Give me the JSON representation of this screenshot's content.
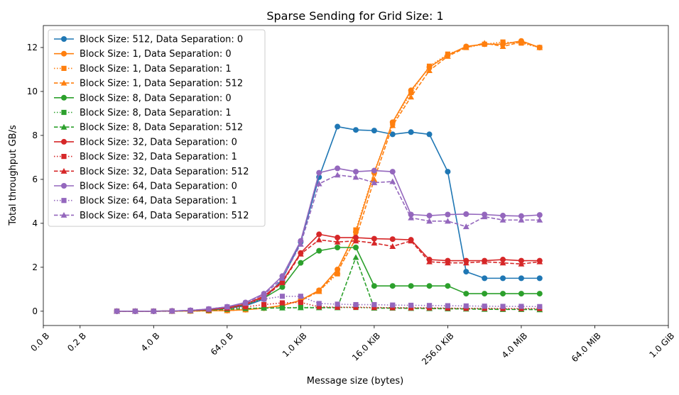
{
  "chart_data": {
    "type": "line",
    "title": "Sparse Sending for Grid Size: 1",
    "xlabel": "Message size (bytes)",
    "ylabel": "Total throughput GB/s",
    "x_scale": "log2",
    "xlim": [
      0.0625,
      1073741824
    ],
    "ylim": [
      -0.65,
      13.0
    ],
    "x_ticks": [
      {
        "value": 0.0625,
        "label": "0.0 B"
      },
      {
        "value": 0.25,
        "label": "0.2 B"
      },
      {
        "value": 4,
        "label": "4.0 B"
      },
      {
        "value": 64,
        "label": "64.0 B"
      },
      {
        "value": 1024,
        "label": "1.0 KiB"
      },
      {
        "value": 16384,
        "label": "16.0 KiB"
      },
      {
        "value": 262144,
        "label": "256.0 KiB"
      },
      {
        "value": 4194304,
        "label": "4.0 MiB"
      },
      {
        "value": 67108864,
        "label": "64.0 MiB"
      },
      {
        "value": 1073741824,
        "label": "1.0 GiB"
      }
    ],
    "y_ticks": [
      0,
      2,
      4,
      6,
      8,
      10,
      12
    ],
    "x": [
      1,
      2,
      4,
      8,
      16,
      32,
      64,
      128,
      256,
      512,
      1024,
      2048,
      4096,
      8192,
      16384,
      32768,
      65536,
      131072,
      262144,
      524288,
      1048576,
      2097152,
      4194304,
      8388608
    ],
    "legend_position": "upper left",
    "series": [
      {
        "name": "Block Size: 512, Data Separation: 0",
        "color": "#1f77b4",
        "linestyle": "solid",
        "marker": "circle",
        "x": [
          1,
          2,
          4,
          8,
          16,
          32,
          64,
          128,
          256,
          512,
          1024,
          2048,
          4096,
          8192,
          16384,
          32768,
          65536,
          131072,
          262144,
          524288,
          1048576,
          2097152,
          4194304,
          8388608
        ],
        "values": [
          0.0,
          0.0,
          0.0,
          0.01,
          0.03,
          0.05,
          0.12,
          0.25,
          0.55,
          1.45,
          3.15,
          6.1,
          8.4,
          8.25,
          8.22,
          8.05,
          8.15,
          8.05,
          6.35,
          1.8,
          1.5,
          1.5,
          1.5,
          1.5
        ]
      },
      {
        "name": "Block Size: 1, Data Separation: 0",
        "color": "#ff7f0e",
        "linestyle": "solid",
        "marker": "circle",
        "x": [
          1,
          2,
          4,
          8,
          16,
          32,
          64,
          128,
          256,
          512,
          1024,
          2048,
          4096,
          8192,
          16384,
          32768,
          65536,
          131072,
          262144,
          524288,
          1048576,
          2097152,
          4194304,
          8388608
        ],
        "values": [
          0.0,
          0.0,
          0.0,
          0.0,
          0.01,
          0.02,
          0.03,
          0.07,
          0.14,
          0.26,
          0.5,
          0.95,
          1.9,
          3.6,
          6.3,
          8.6,
          10.05,
          11.1,
          11.65,
          12.05,
          12.15,
          12.15,
          12.3,
          12.0
        ]
      },
      {
        "name": "Block Size: 1, Data Separation: 1",
        "color": "#ff7f0e",
        "linestyle": "dotted",
        "marker": "square",
        "x": [
          1,
          2,
          4,
          8,
          16,
          32,
          64,
          128,
          256,
          512,
          1024,
          2048,
          4096,
          8192,
          16384,
          32768,
          65536,
          131072,
          262144,
          524288,
          1048576,
          2097152,
          4194304,
          8388608
        ],
        "values": [
          0.0,
          0.0,
          0.0,
          0.0,
          0.01,
          0.02,
          0.03,
          0.07,
          0.14,
          0.26,
          0.48,
          0.92,
          1.7,
          3.7,
          6.35,
          8.55,
          9.95,
          11.15,
          11.7,
          12.0,
          12.15,
          12.25,
          12.2,
          12.0
        ]
      },
      {
        "name": "Block Size: 1, Data Separation: 512",
        "color": "#ff7f0e",
        "linestyle": "dashed",
        "marker": "triangle",
        "x": [
          1,
          2,
          4,
          8,
          16,
          32,
          64,
          128,
          256,
          512,
          1024,
          2048,
          4096,
          8192,
          16384,
          32768,
          65536,
          131072,
          262144,
          524288,
          1048576,
          2097152,
          4194304,
          8388608
        ],
        "values": [
          0.0,
          0.0,
          0.0,
          0.0,
          0.01,
          0.02,
          0.03,
          0.07,
          0.14,
          0.26,
          0.48,
          0.9,
          1.8,
          3.3,
          6.0,
          8.45,
          9.75,
          10.95,
          11.6,
          12.0,
          12.2,
          12.05,
          12.25,
          12.0
        ]
      },
      {
        "name": "Block Size: 8, Data Separation: 0",
        "color": "#2ca02c",
        "linestyle": "solid",
        "marker": "circle",
        "x": [
          1,
          2,
          4,
          8,
          16,
          32,
          64,
          128,
          256,
          512,
          1024,
          2048,
          4096,
          8192,
          16384,
          32768,
          65536,
          131072,
          262144,
          524288,
          1048576,
          2097152,
          4194304,
          8388608
        ],
        "values": [
          0.0,
          0.0,
          0.0,
          0.01,
          0.03,
          0.07,
          0.15,
          0.3,
          0.6,
          1.1,
          2.2,
          2.75,
          2.9,
          2.9,
          1.15,
          1.15,
          1.15,
          1.15,
          1.15,
          0.8,
          0.8,
          0.8,
          0.8,
          0.8
        ]
      },
      {
        "name": "Block Size: 8, Data Separation: 1",
        "color": "#2ca02c",
        "linestyle": "dotted",
        "marker": "square",
        "x": [
          1,
          2,
          4,
          8,
          16,
          32,
          64,
          128,
          256,
          512,
          1024,
          2048,
          4096,
          8192,
          16384,
          32768,
          65536,
          131072,
          262144,
          524288,
          1048576,
          2097152,
          4194304,
          8388608
        ],
        "values": [
          0.0,
          0.0,
          0.0,
          0.01,
          0.02,
          0.05,
          0.09,
          0.13,
          0.15,
          0.16,
          0.17,
          0.17,
          0.17,
          0.17,
          0.15,
          0.15,
          0.15,
          0.14,
          0.13,
          0.12,
          0.12,
          0.1,
          0.1,
          0.1
        ]
      },
      {
        "name": "Block Size: 8, Data Separation: 512",
        "color": "#2ca02c",
        "linestyle": "dashed",
        "marker": "triangle",
        "x": [
          1,
          2,
          4,
          8,
          16,
          32,
          64,
          128,
          256,
          512,
          1024,
          2048,
          4096,
          8192,
          16384,
          32768,
          65536,
          131072,
          262144,
          524288,
          1048576,
          2097152,
          4194304,
          8388608
        ],
        "values": [
          0.0,
          0.0,
          0.0,
          0.0,
          0.02,
          0.05,
          0.09,
          0.12,
          0.14,
          0.15,
          0.16,
          0.16,
          0.16,
          2.45,
          0.14,
          0.14,
          0.13,
          0.12,
          0.11,
          0.1,
          0.09,
          0.08,
          0.08,
          0.07
        ]
      },
      {
        "name": "Block Size: 32, Data Separation: 0",
        "color": "#d62728",
        "linestyle": "solid",
        "marker": "circle",
        "x": [
          1,
          2,
          4,
          8,
          16,
          32,
          64,
          128,
          256,
          512,
          1024,
          2048,
          4096,
          8192,
          16384,
          32768,
          65536,
          131072,
          262144,
          524288,
          1048576,
          2097152,
          4194304,
          8388608
        ],
        "values": [
          0.0,
          0.0,
          0.0,
          0.01,
          0.03,
          0.08,
          0.16,
          0.33,
          0.68,
          1.35,
          2.65,
          3.5,
          3.35,
          3.35,
          3.3,
          3.28,
          3.25,
          2.35,
          2.3,
          2.3,
          2.3,
          2.35,
          2.3,
          2.3
        ]
      },
      {
        "name": "Block Size: 32, Data Separation: 1",
        "color": "#d62728",
        "linestyle": "dotted",
        "marker": "square",
        "x": [
          1,
          2,
          4,
          8,
          16,
          32,
          64,
          128,
          256,
          512,
          1024,
          2048,
          4096,
          8192,
          16384,
          32768,
          65536,
          131072,
          262144,
          524288,
          1048576,
          2097152,
          4194304,
          8388608
        ],
        "values": [
          0.0,
          0.0,
          0.0,
          0.01,
          0.03,
          0.07,
          0.13,
          0.2,
          0.3,
          0.38,
          0.4,
          0.2,
          0.18,
          0.18,
          0.17,
          0.16,
          0.15,
          0.15,
          0.14,
          0.13,
          0.13,
          0.12,
          0.12,
          0.12
        ]
      },
      {
        "name": "Block Size: 32, Data Separation: 512",
        "color": "#d62728",
        "linestyle": "dashed",
        "marker": "triangle",
        "x": [
          1,
          2,
          4,
          8,
          16,
          32,
          64,
          128,
          256,
          512,
          1024,
          2048,
          4096,
          8192,
          16384,
          32768,
          65536,
          131072,
          262144,
          524288,
          1048576,
          2097152,
          4194304,
          8388608
        ],
        "values": [
          0.0,
          0.0,
          0.0,
          0.01,
          0.03,
          0.07,
          0.15,
          0.3,
          0.62,
          1.3,
          2.6,
          3.25,
          3.15,
          3.2,
          3.1,
          2.95,
          3.2,
          2.25,
          2.2,
          2.2,
          2.25,
          2.2,
          2.15,
          2.25
        ]
      },
      {
        "name": "Block Size: 64, Data Separation: 0",
        "color": "#9467bd",
        "linestyle": "solid",
        "marker": "circle",
        "x": [
          1,
          2,
          4,
          8,
          16,
          32,
          64,
          128,
          256,
          512,
          1024,
          2048,
          4096,
          8192,
          16384,
          32768,
          65536,
          131072,
          262144,
          524288,
          1048576,
          2097152,
          4194304,
          8388608
        ],
        "values": [
          0.0,
          0.0,
          0.0,
          0.01,
          0.04,
          0.1,
          0.2,
          0.4,
          0.8,
          1.6,
          3.2,
          6.3,
          6.5,
          6.35,
          6.4,
          6.35,
          4.4,
          4.35,
          4.4,
          4.42,
          4.4,
          4.35,
          4.33,
          4.38
        ]
      },
      {
        "name": "Block Size: 64, Data Separation: 1",
        "color": "#9467bd",
        "linestyle": "dotted",
        "marker": "square",
        "x": [
          1,
          2,
          4,
          8,
          16,
          32,
          64,
          128,
          256,
          512,
          1024,
          2048,
          4096,
          8192,
          16384,
          32768,
          65536,
          131072,
          262144,
          524288,
          1048576,
          2097152,
          4194304,
          8388608
        ],
        "values": [
          0.0,
          0.0,
          0.0,
          0.01,
          0.04,
          0.1,
          0.2,
          0.36,
          0.55,
          0.68,
          0.68,
          0.35,
          0.32,
          0.3,
          0.3,
          0.28,
          0.27,
          0.26,
          0.25,
          0.24,
          0.23,
          0.22,
          0.22,
          0.21
        ]
      },
      {
        "name": "Block Size: 64, Data Separation: 512",
        "color": "#9467bd",
        "linestyle": "dashed",
        "marker": "triangle",
        "x": [
          1,
          2,
          4,
          8,
          16,
          32,
          64,
          128,
          256,
          512,
          1024,
          2048,
          4096,
          8192,
          16384,
          32768,
          65536,
          131072,
          262144,
          524288,
          1048576,
          2097152,
          4194304,
          8388608
        ],
        "values": [
          0.0,
          0.0,
          0.0,
          0.01,
          0.04,
          0.1,
          0.2,
          0.38,
          0.75,
          1.5,
          3.05,
          5.8,
          6.2,
          6.1,
          5.85,
          5.9,
          4.25,
          4.1,
          4.1,
          3.85,
          4.3,
          4.15,
          4.15,
          4.15
        ]
      }
    ]
  }
}
